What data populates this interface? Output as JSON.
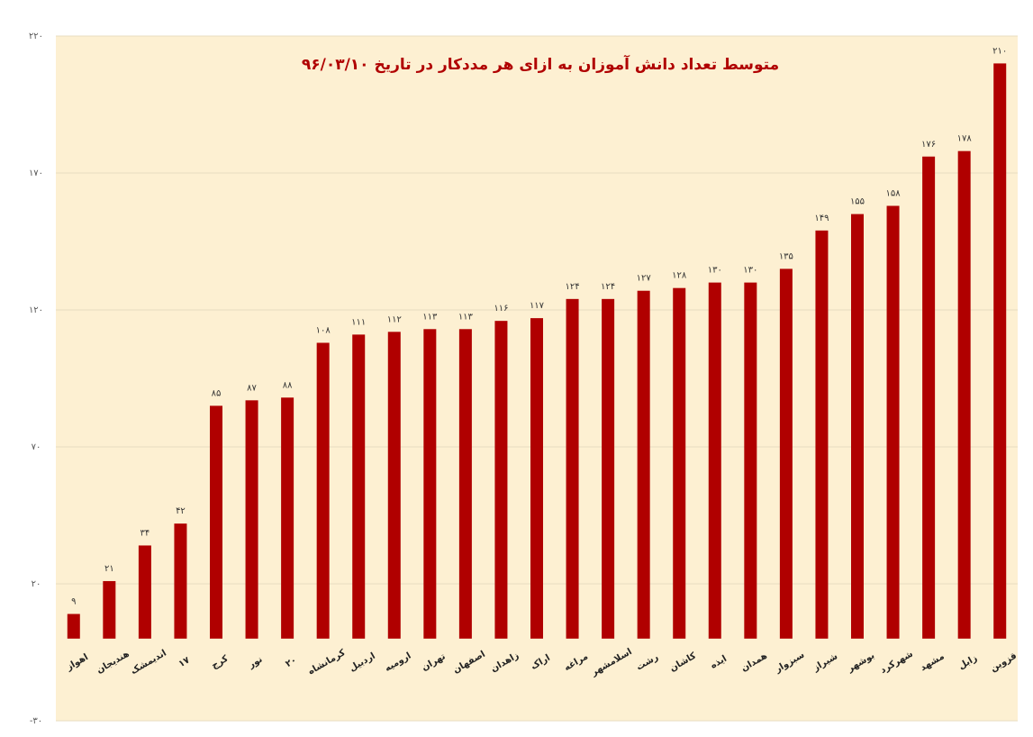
{
  "chart_data": {
    "type": "bar",
    "title": "متوسط تعداد دانش آموزان به ازای هر مددکار در تاریخ ۹۶/۰۳/۱۰",
    "categories": [
      "اهواز",
      "هندیجان",
      "اندیمشک",
      "۱۷",
      "کرج",
      "نور",
      "۲۰",
      "کرمانشاه",
      "اردبیل",
      "ارومیه",
      "تهران",
      "اصفهان",
      "زاهدان",
      "اراک",
      "مراغه",
      "اسلامشهر",
      "رشت",
      "کاشان",
      "ایذه",
      "همدان",
      "سبزوار",
      "شیراز",
      "بوشهر",
      "شهرکرد",
      "مشهد",
      "زابل",
      "قزوین"
    ],
    "values": [
      9,
      21,
      34,
      42,
      85,
      87,
      88,
      108,
      111,
      112,
      113,
      113,
      116,
      117,
      124,
      124,
      127,
      128,
      130,
      130,
      135,
      149,
      155,
      158,
      176,
      178,
      210
    ],
    "value_labels": [
      "۹",
      "۲۱",
      "۳۴",
      "۴۲",
      "۸۵",
      "۸۷",
      "۸۸",
      "۱۰۸",
      "۱۱۱",
      "۱۱۲",
      "۱۱۳",
      "۱۱۳",
      "۱۱۶",
      "۱۱۷",
      "۱۲۴",
      "۱۲۴",
      "۱۲۷",
      "۱۲۸",
      "۱۳۰",
      "۱۳۰",
      "۱۳۵",
      "۱۴۹",
      "۱۵۵",
      "۱۵۸",
      "۱۷۶",
      "۱۷۸",
      "۲۱۰"
    ],
    "color": "#b00000",
    "ylim": [
      -30,
      220
    ],
    "yticks": [
      {
        "value": -30,
        "label": "-۳۰"
      },
      {
        "value": 20,
        "label": "۲۰"
      },
      {
        "value": 70,
        "label": "۷۰"
      },
      {
        "value": 120,
        "label": "۱۲۰"
      },
      {
        "value": 170,
        "label": "۱۷۰"
      },
      {
        "value": 220,
        "label": "۲۲۰"
      }
    ],
    "grid": true
  }
}
